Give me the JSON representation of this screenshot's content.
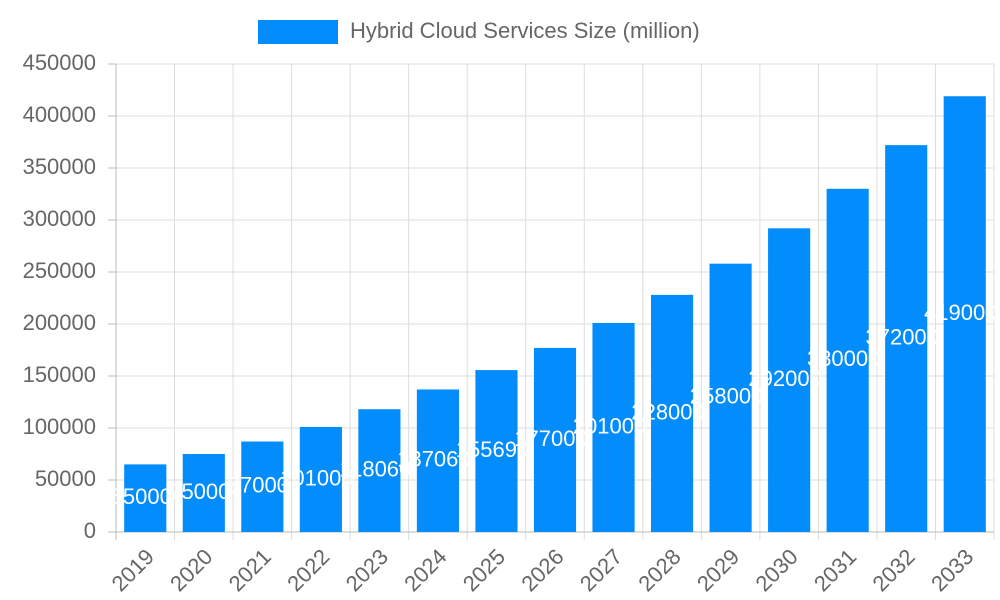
{
  "chart_data": {
    "type": "bar",
    "legend": "Hybrid Cloud Services Size (million)",
    "categories": [
      "2019",
      "2020",
      "2021",
      "2022",
      "2023",
      "2024",
      "2025",
      "2026",
      "2027",
      "2028",
      "2029",
      "2030",
      "2031",
      "2032",
      "2033"
    ],
    "values": [
      65000,
      75000,
      87000,
      101000,
      118060,
      137060,
      155690,
      177000,
      201000,
      228000,
      258000,
      292000,
      330000,
      372000,
      419000
    ],
    "color": "#038cfc",
    "ylim": [
      0,
      450000
    ],
    "yticks": [
      0,
      50000,
      100000,
      150000,
      200000,
      250000,
      300000,
      350000,
      400000,
      450000
    ],
    "grid": true
  }
}
